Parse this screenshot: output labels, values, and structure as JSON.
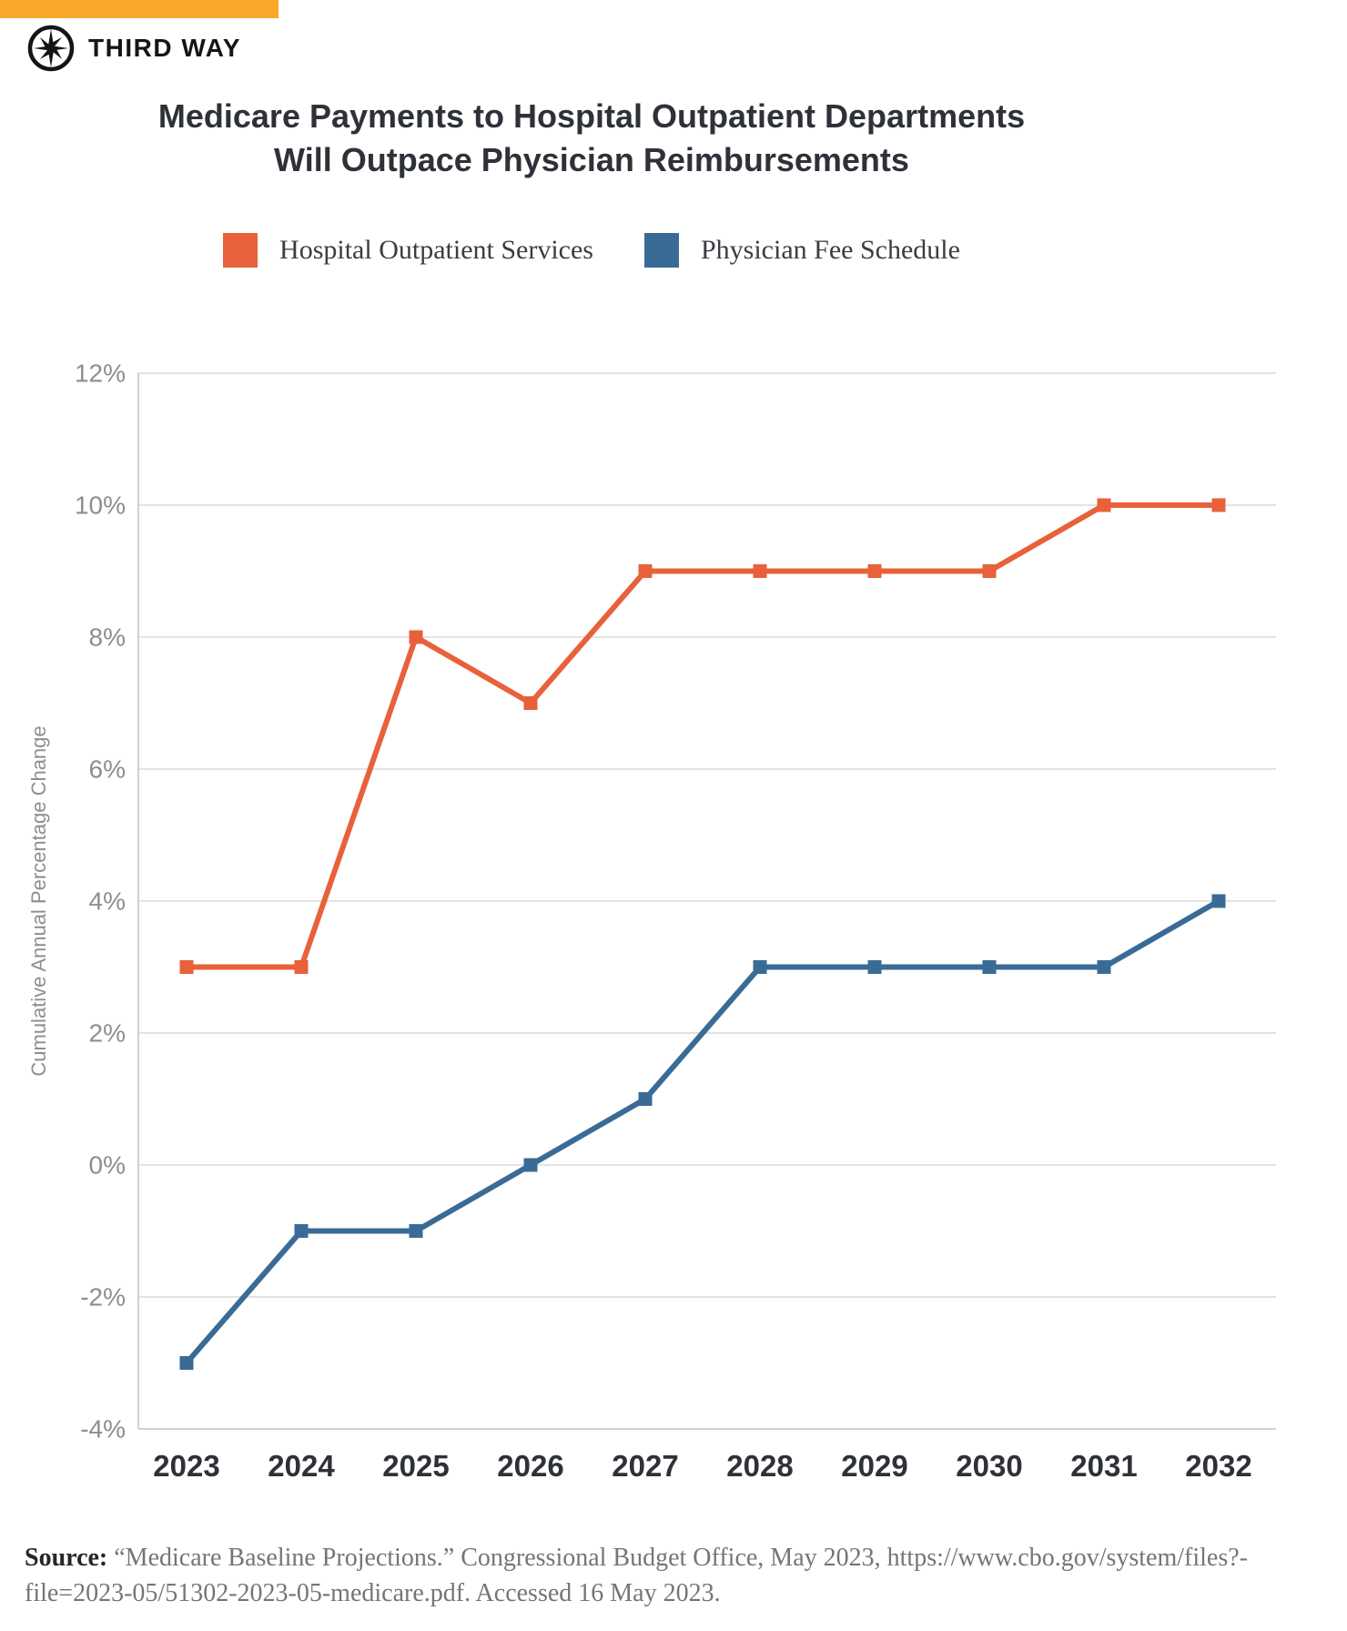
{
  "brand": {
    "name": "THIRD WAY",
    "topbar_color": "#F9A62B",
    "logo_icon": "compass-icon"
  },
  "title": {
    "line1": "Medicare Payments to Hospital Outpatient Departments",
    "line2": "Will Outpace Physician Reimbursements"
  },
  "legend": [
    {
      "label": "Hospital Outpatient Services",
      "color": "#E8613A"
    },
    {
      "label": "Physician Fee Schedule",
      "color": "#3A6B96"
    }
  ],
  "chart_data": {
    "type": "line",
    "x": [
      2023,
      2024,
      2025,
      2026,
      2027,
      2028,
      2029,
      2030,
      2031,
      2032
    ],
    "series": [
      {
        "name": "Hospital Outpatient Services",
        "color": "#E8613A",
        "values": [
          3,
          3,
          8,
          7,
          9,
          9,
          9,
          9,
          10,
          10
        ]
      },
      {
        "name": "Physician Fee Schedule",
        "color": "#3A6B96",
        "values": [
          -3,
          -1,
          -1,
          0,
          1,
          3,
          3,
          3,
          3,
          4
        ]
      }
    ],
    "ylabel": "Cumulative Annual Percentage Change",
    "ylim": [
      -4,
      12
    ],
    "ytick_step": 2,
    "ytick_suffix": "%",
    "grid": true,
    "legend_position": "top",
    "marker": "square",
    "colors": {
      "gridline": "#dadadb",
      "axis_line": "#c4c4c6",
      "tick_label": "#8c8e91",
      "x_label": "#2e3138"
    }
  },
  "source": {
    "label": "Source:",
    "line1": "“Medicare Baseline Projections.” Congressional Budget Office, May 2023, https://www.cbo.gov/system/files?-",
    "line2": "file=2023-05/51302-2023-05-medicare.pdf. Accessed 16 May 2023."
  }
}
